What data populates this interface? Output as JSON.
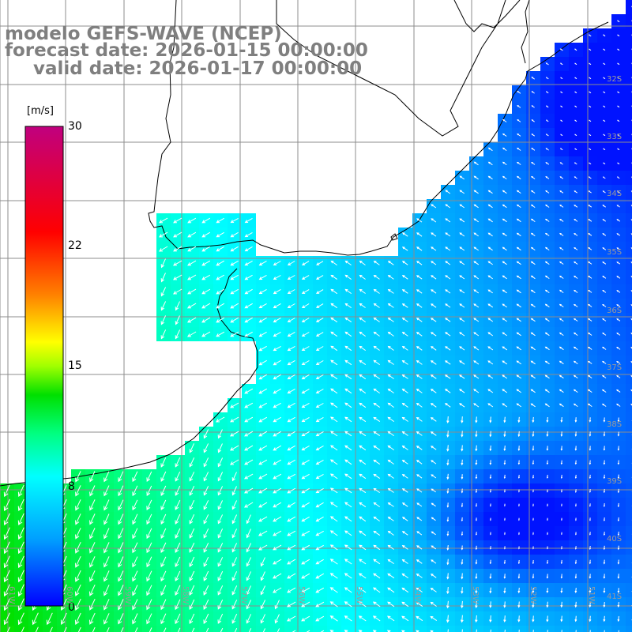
{
  "title": {
    "line1": "modelo GEFS-WAVE (NCEP)",
    "line2": "forecast date: 2026-01-15 00:00:00",
    "line3": "valid date: 2026-01-17 00:00:00"
  },
  "colorbar": {
    "unit": "[m/s]",
    "min": 0,
    "max": 30,
    "ticks": [
      {
        "label": "30",
        "value": 30
      },
      {
        "label": "22",
        "value": 22
      },
      {
        "label": "15",
        "value": 15
      },
      {
        "label": "8",
        "value": 8
      },
      {
        "label": "0",
        "value": 0
      }
    ],
    "stops": [
      "#0000ff",
      "#00a0ff",
      "#00ffff",
      "#00ff80",
      "#00e000",
      "#a0ff00",
      "#ffff00",
      "#ff8000",
      "#ff0000",
      "#c0007f"
    ]
  },
  "grid": {
    "lat_labels": [
      "32S",
      "33S",
      "34S",
      "35S",
      "36S",
      "37S",
      "38S",
      "39S",
      "40S",
      "41S"
    ],
    "lon_labels": [
      "61W",
      "60W",
      "59W",
      "58W",
      "57W",
      "56W",
      "55W",
      "54W",
      "53W",
      "52W",
      "51W"
    ]
  },
  "colors": {
    "land": "#ffffff",
    "coastline": "#000000",
    "gridline": "#8c8c8c",
    "arrows": "#ffffff",
    "title": "#7f7f7f"
  }
}
